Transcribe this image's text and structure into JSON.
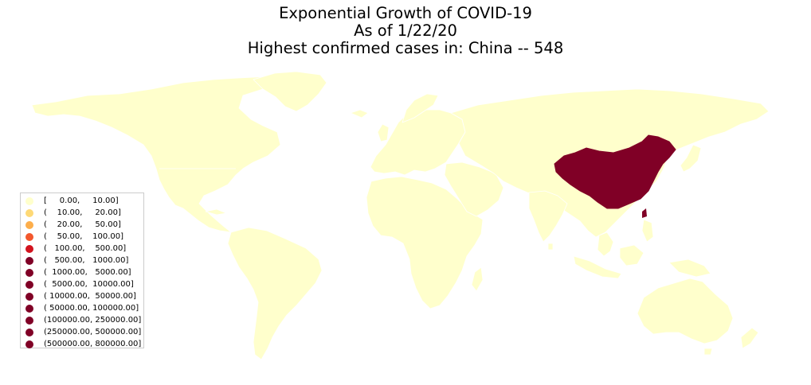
{
  "title": {
    "line1": "Exponential Growth of COVID-19",
    "line2": "As of 1/22/20",
    "line3": "Highest confirmed cases in: China -- 548"
  },
  "map": {
    "base_fill": "#ffffcc",
    "border": "#ffffff",
    "highlight_country": "China",
    "highlight_value": 548,
    "highlight_fill": "#800026"
  },
  "legend": {
    "placement": "lower-left",
    "items": [
      {
        "label": "[     0.00,     10.00]",
        "color": "#ffffcc"
      },
      {
        "label": "(    10.00,     20.00]",
        "color": "#fed976"
      },
      {
        "label": "(    20.00,     50.00]",
        "color": "#fdae4b"
      },
      {
        "label": "(    50.00,    100.00]",
        "color": "#f3582d"
      },
      {
        "label": "(   100.00,    500.00]",
        "color": "#d2131e"
      },
      {
        "label": "(   500.00,   1000.00]",
        "color": "#800026"
      },
      {
        "label": "(  1000.00,   5000.00]",
        "color": "#800026"
      },
      {
        "label": "(  5000.00,  10000.00]",
        "color": "#800026"
      },
      {
        "label": "( 10000.00,  50000.00]",
        "color": "#800026"
      },
      {
        "label": "( 50000.00, 100000.00]",
        "color": "#800026"
      },
      {
        "label": "(100000.00, 250000.00]",
        "color": "#800026"
      },
      {
        "label": "(250000.00, 500000.00]",
        "color": "#800026"
      },
      {
        "label": "(500000.00, 800000.00]",
        "color": "#800026"
      }
    ]
  }
}
